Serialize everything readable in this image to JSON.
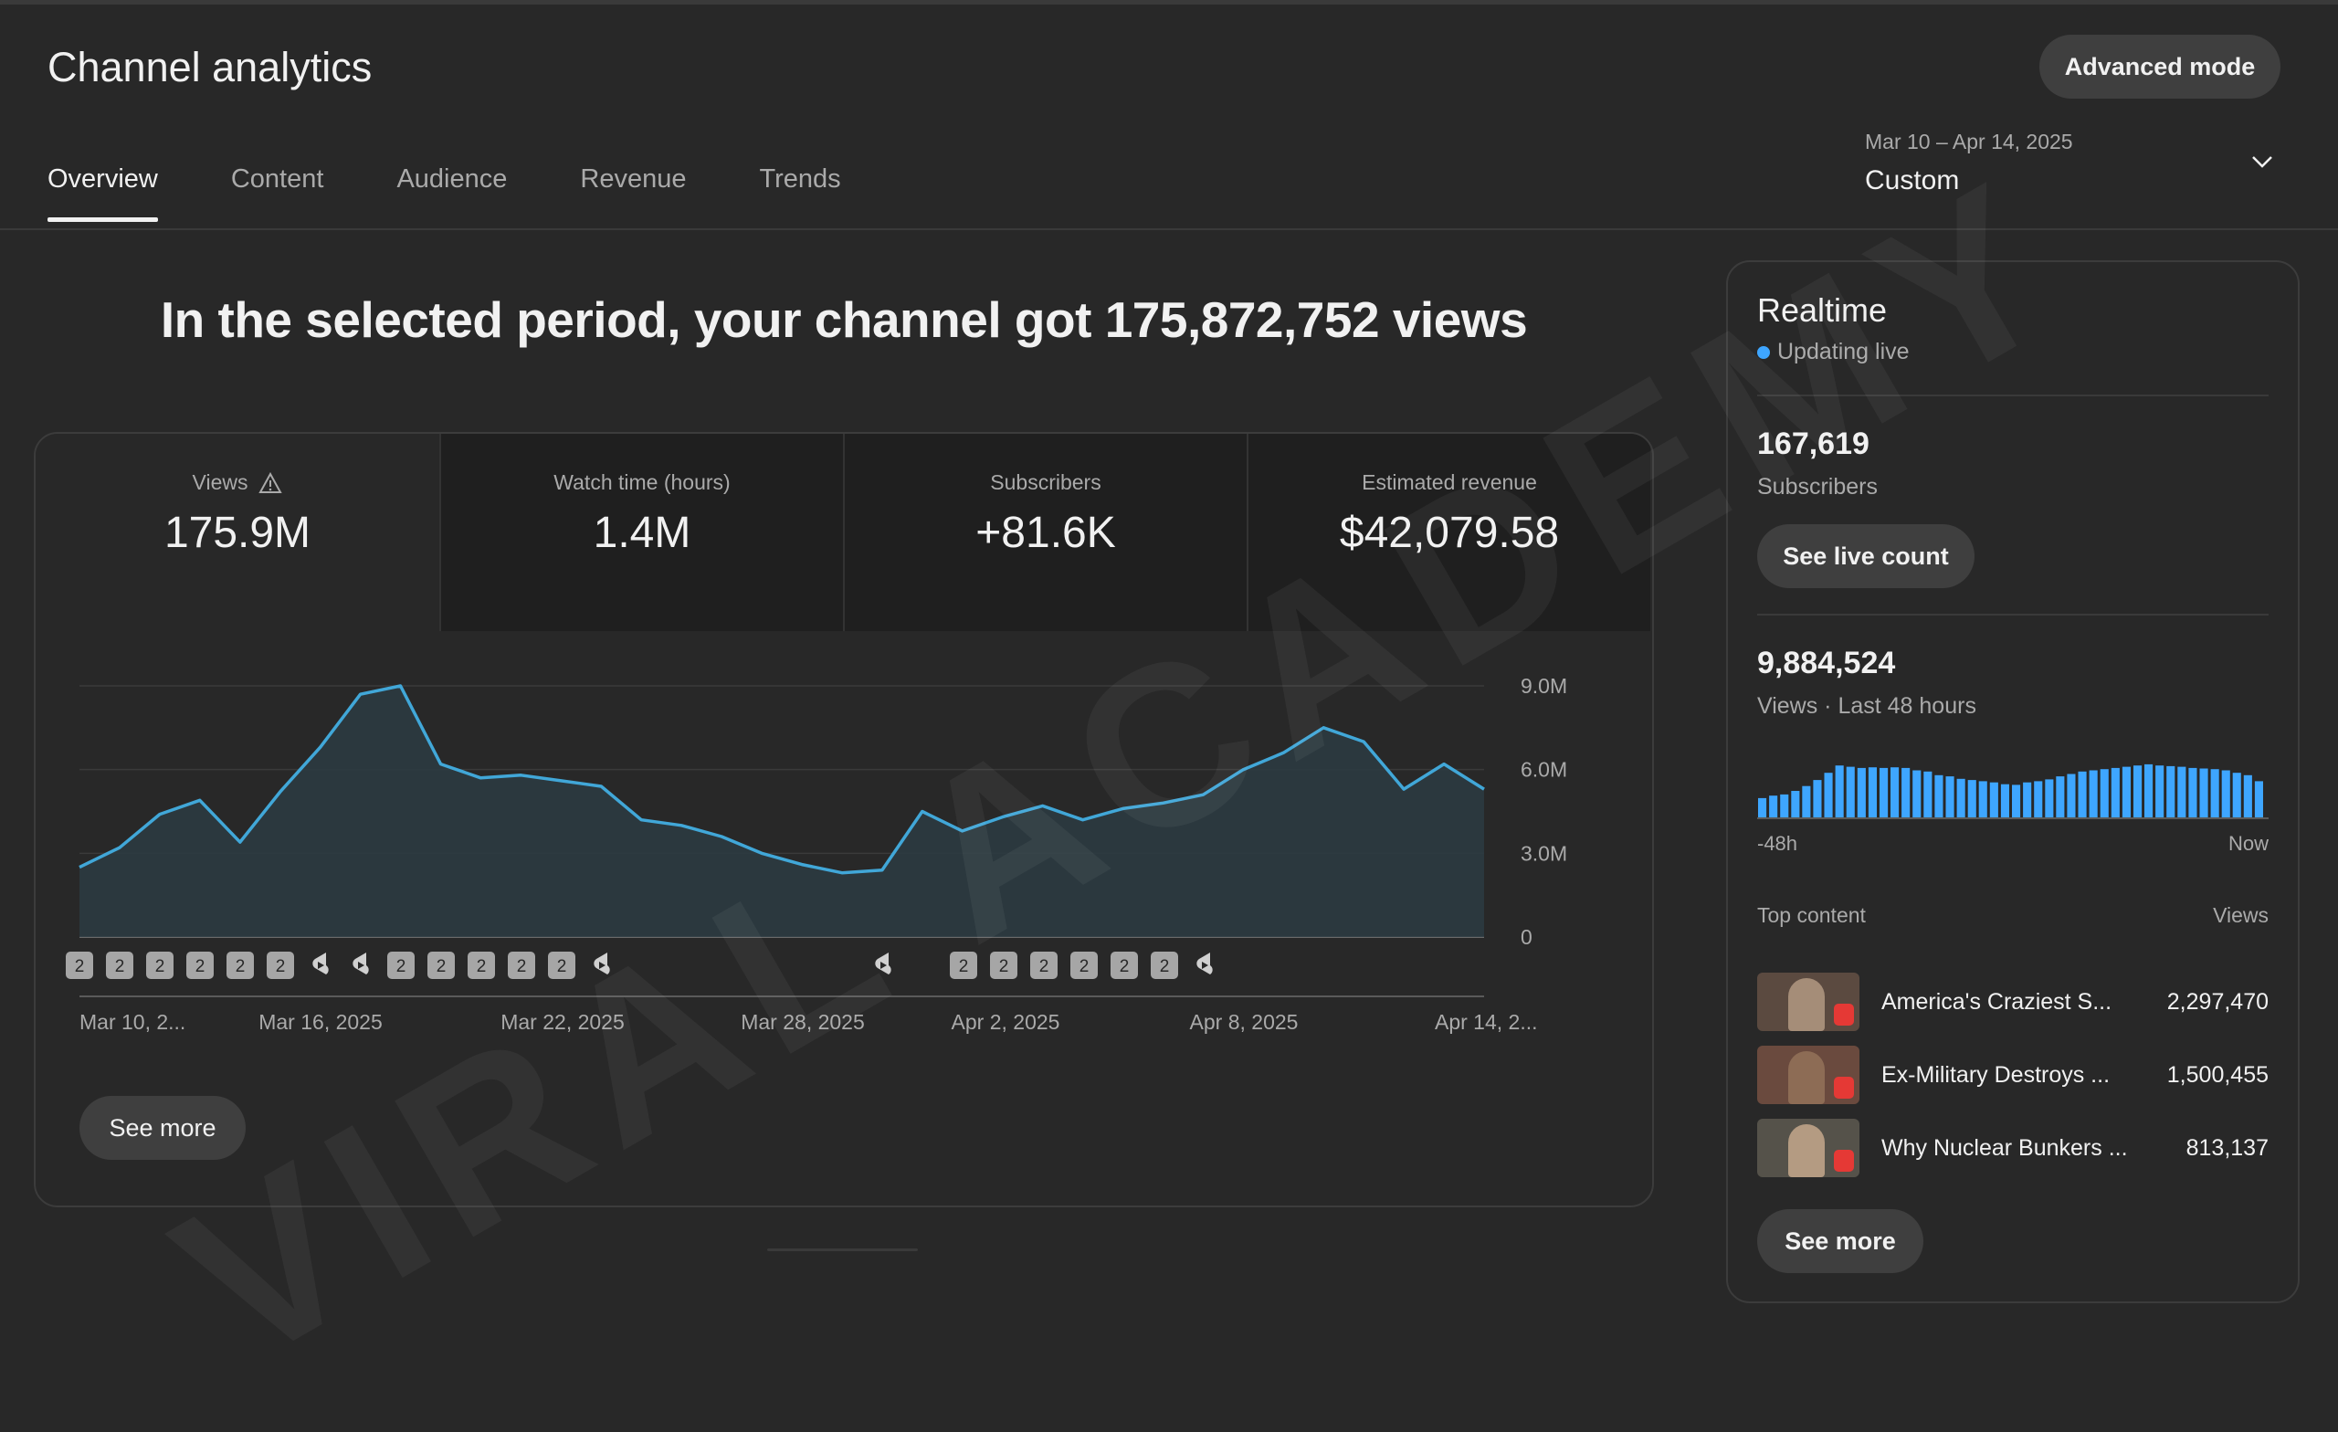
{
  "page": {
    "title": "Channel analytics",
    "advanced_mode_label": "Advanced mode"
  },
  "tabs": [
    {
      "label": "Overview",
      "active": true
    },
    {
      "label": "Content"
    },
    {
      "label": "Audience"
    },
    {
      "label": "Revenue"
    },
    {
      "label": "Trends"
    }
  ],
  "date_picker": {
    "range": "Mar 10 – Apr 14, 2025",
    "label": "Custom"
  },
  "headline": "In the selected period, your channel got 175,872,752 views",
  "metrics": [
    {
      "label": "Views",
      "value": "175.9M",
      "warning_icon": "warning-icon"
    },
    {
      "label": "Watch time (hours)",
      "value": "1.4M"
    },
    {
      "label": "Subscribers",
      "value": "+81.6K"
    },
    {
      "label": "Estimated revenue",
      "value": "$42,079.58"
    }
  ],
  "chart_data": {
    "type": "area",
    "x_tick_labels": [
      "Mar 10, 2...",
      "Mar 16, 2025",
      "Mar 22, 2025",
      "Mar 28, 2025",
      "Apr 2, 2025",
      "Apr 8, 2025",
      "Apr 14, 2..."
    ],
    "y_tick_labels": [
      "9.0M",
      "6.0M",
      "3.0M",
      "0"
    ],
    "ylim": [
      0,
      9000000
    ],
    "series": [
      {
        "values": [
          2500000,
          3200000,
          4400000,
          4900000,
          3400000,
          5200000,
          6800000,
          8700000,
          9000000,
          6200000,
          5700000,
          5800000,
          5600000,
          5400000,
          4200000,
          4000000,
          3600000,
          3000000,
          2600000,
          2300000,
          2400000,
          4500000,
          3800000,
          4300000,
          4700000,
          4200000,
          4600000,
          4800000,
          5100000,
          6000000,
          6600000,
          7500000,
          7000000,
          5300000,
          6200000,
          5300000
        ]
      }
    ],
    "release_markers": [
      "2",
      "2",
      "2",
      "2",
      "2",
      "2",
      "shorts",
      "shorts",
      "2",
      "2",
      "2",
      "2",
      "2",
      "shorts",
      "shorts",
      "2",
      "2",
      "2",
      "2",
      "2",
      "2",
      "shorts"
    ],
    "colors": {
      "line": "#41a7d8",
      "fill": "#2c3b42"
    },
    "grid": true
  },
  "see_more_label": "See more",
  "realtime": {
    "title": "Realtime",
    "live_label": "Updating live",
    "subscribers_value": "167,619",
    "subscribers_label": "Subscribers",
    "live_count_label": "See live count",
    "views_value": "9,884,524",
    "views_label": "Views · Last 48 hours",
    "bars": [
      0.32,
      0.36,
      0.38,
      0.44,
      0.52,
      0.62,
      0.74,
      0.86,
      0.84,
      0.82,
      0.83,
      0.82,
      0.83,
      0.82,
      0.78,
      0.76,
      0.7,
      0.68,
      0.64,
      0.62,
      0.6,
      0.58,
      0.55,
      0.54,
      0.58,
      0.6,
      0.63,
      0.68,
      0.72,
      0.76,
      0.78,
      0.8,
      0.82,
      0.84,
      0.86,
      0.88,
      0.86,
      0.85,
      0.84,
      0.82,
      0.81,
      0.8,
      0.78,
      0.74,
      0.7,
      0.6
    ],
    "bar_start_label": "-48h",
    "bar_end_label": "Now",
    "top_content_label": "Top content",
    "top_content_views_label": "Views",
    "top_content": [
      {
        "title": "America's Craziest S...",
        "views": "2,297,470"
      },
      {
        "title": "Ex-Military Destroys ...",
        "views": "1,500,455"
      },
      {
        "title": "Why Nuclear Bunkers ...",
        "views": "813,137"
      }
    ],
    "see_more_label": "See more"
  },
  "watermark": "VIRAL ACADEMY"
}
